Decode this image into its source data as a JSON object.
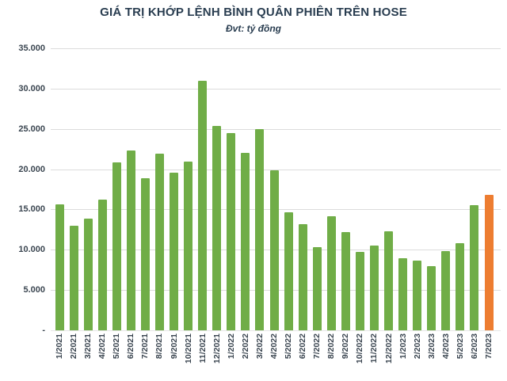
{
  "chart_data": {
    "type": "bar",
    "title": "GIÁ TRỊ KHỚP LỆNH BÌNH QUÂN PHIÊN TRÊN HOSE",
    "subtitle": "Đvt: tỷ đồng",
    "unit": "tỷ đồng",
    "categories": [
      "1/2021",
      "2/2021",
      "3/2021",
      "4/2021",
      "5/2021",
      "6/2021",
      "7/2021",
      "8/2021",
      "9/2021",
      "10/2021",
      "11/2021",
      "12/2021",
      "1/2022",
      "2/2022",
      "3/2022",
      "4/2022",
      "5/2022",
      "6/2022",
      "7/2022",
      "8/2022",
      "9/2022",
      "10/2022",
      "11/2022",
      "12/2022",
      "1/2023",
      "2/2023",
      "3/2023",
      "4/2023",
      "5/2023",
      "6/2023",
      "7/2023"
    ],
    "values": [
      15600,
      13000,
      13900,
      16200,
      20800,
      22300,
      18900,
      21900,
      19600,
      20900,
      31000,
      25400,
      24500,
      22000,
      25000,
      19900,
      14600,
      13200,
      10300,
      14200,
      12200,
      9700,
      10500,
      12300,
      8900,
      8700,
      8000,
      9800,
      10800,
      15500,
      16800
    ],
    "highlight_index": 30,
    "ylim": [
      0,
      35000
    ],
    "y_ticks": [
      35000,
      30000,
      25000,
      20000,
      15000,
      10000,
      5000,
      0
    ],
    "y_tick_labels": [
      "35.000",
      "30.000",
      "25.000",
      "20.000",
      "15.000",
      "10.000",
      "5.000",
      "-"
    ],
    "grid": true,
    "legend": false,
    "colors": {
      "bar": "#70ad47",
      "highlight": "#ed7d31",
      "title": "#293d50",
      "tick_label": "#3a4550",
      "gridline": "#dcdcdc"
    }
  }
}
